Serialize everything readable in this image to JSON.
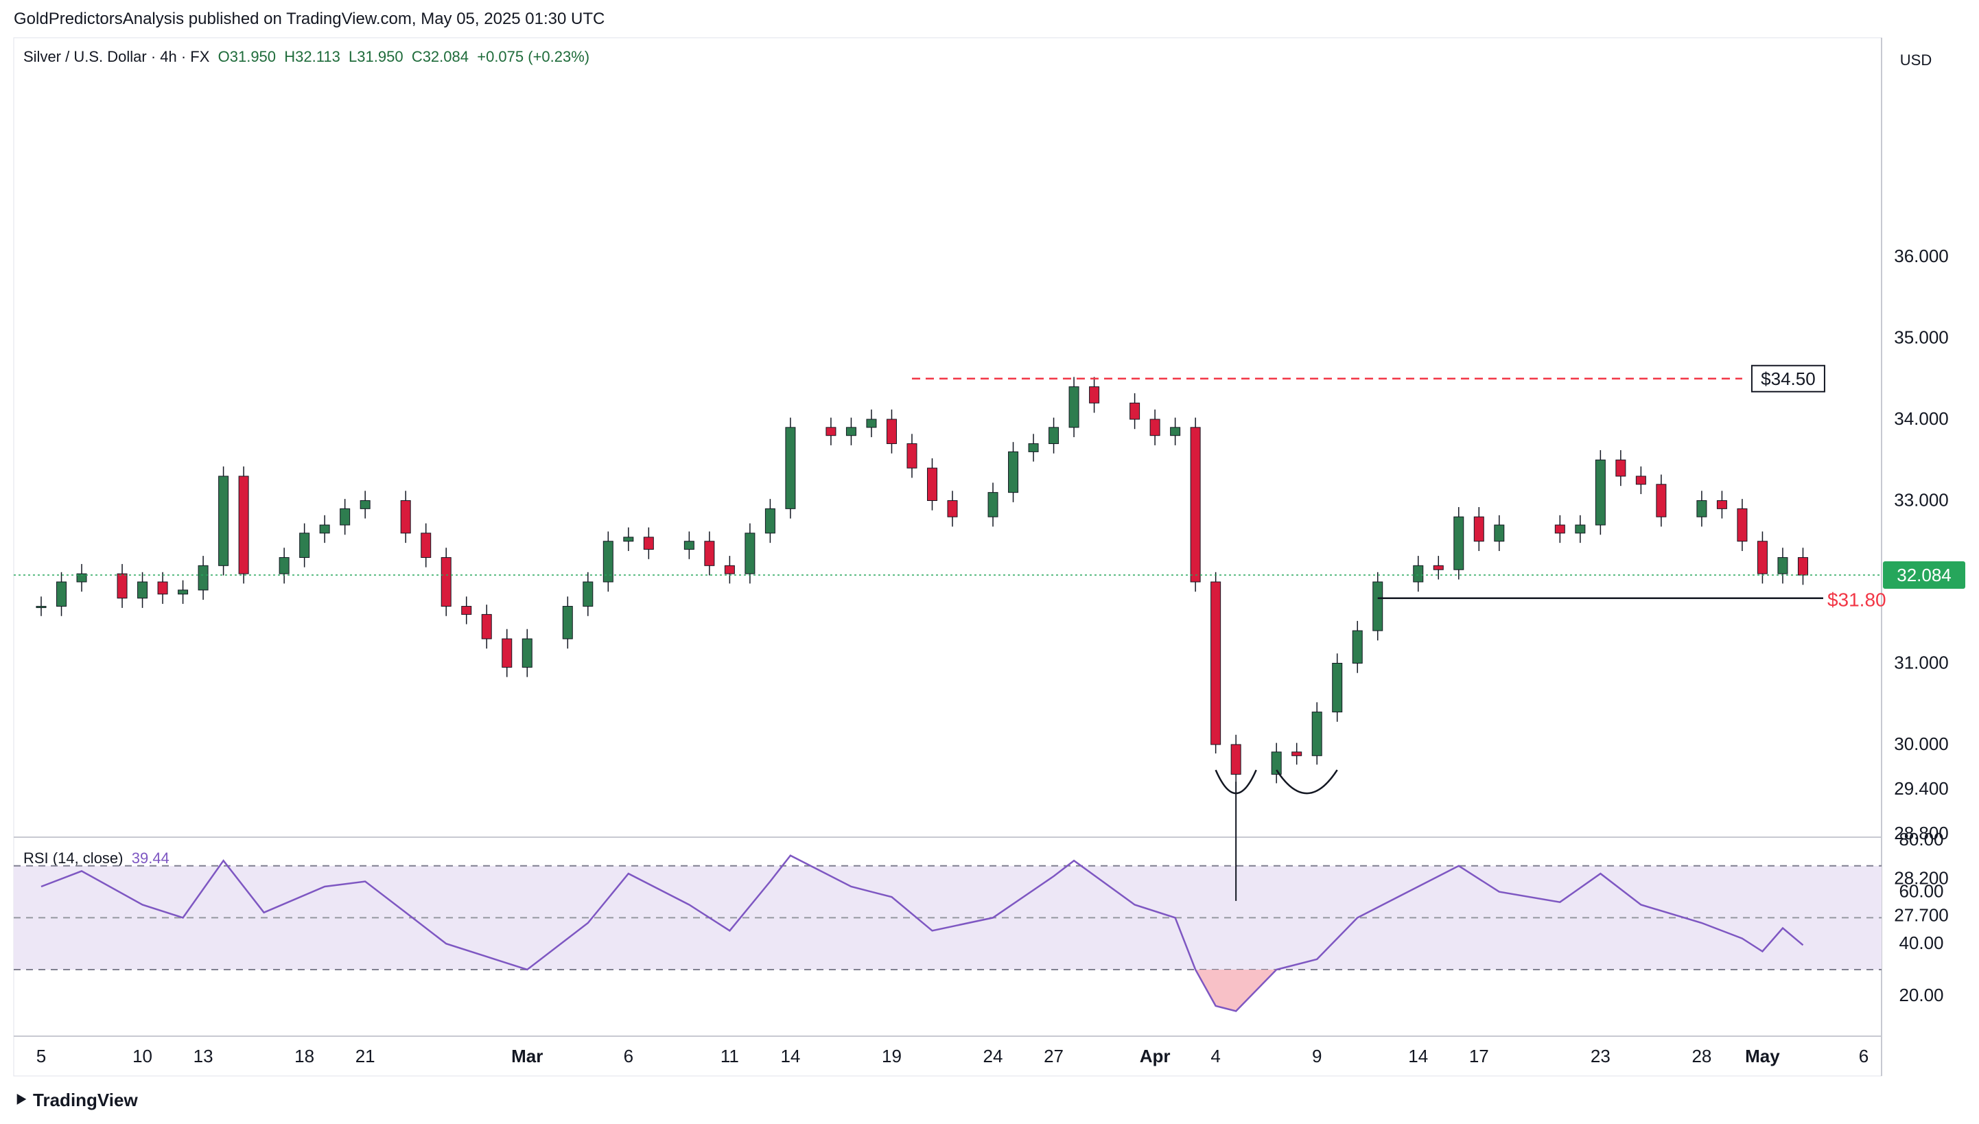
{
  "header": {
    "published_line": "GoldPredictorsAnalysis published on TradingView.com, May 05, 2025 01:30 UTC"
  },
  "legend": {
    "symbol": "Silver / U.S. Dollar · 4h · FX",
    "open": "O31.950",
    "high": "H32.113",
    "low": "L31.950",
    "close": "C32.084",
    "change": "+0.075 (+0.23%)"
  },
  "rsi_legend": {
    "name": "RSI (14, close)",
    "value": "39.44"
  },
  "footer": {
    "brand": "TradingView"
  },
  "colors": {
    "up": "#2e7d4f",
    "down": "#d81b3c",
    "rsi_line": "#7e57c2",
    "rsi_band": "#ede7f6",
    "resistance": "#f23645",
    "current_price": "#26a65b"
  },
  "chart_data": {
    "type": "candlestick",
    "symbol": "Silver / U.S. Dollar",
    "timeframe": "4h",
    "currency_label": "USD",
    "y_axis_ticks": [
      "36.000",
      "35.000",
      "34.000",
      "33.000",
      "31.000",
      "30.000",
      "29.400",
      "28.800",
      "28.200",
      "27.700"
    ],
    "x_axis_ticks": [
      "5",
      "10",
      "13",
      "18",
      "21",
      "Mar",
      "6",
      "11",
      "14",
      "19",
      "24",
      "27",
      "Apr",
      "4",
      "9",
      "14",
      "17",
      "23",
      "28",
      "May",
      "6"
    ],
    "current_price": "32.084",
    "annotations": [
      {
        "label": "$34.50",
        "value": 34.5,
        "style": "dashed red resistance line"
      },
      {
        "label": "$31.80",
        "value": 31.8,
        "style": "solid black support line"
      },
      {
        "label": "double bottom arcs",
        "value": 29.4
      }
    ],
    "close_path": [
      [
        "Feb 5",
        31.7
      ],
      [
        "Feb 6",
        32.0
      ],
      [
        "Feb 7",
        32.1
      ],
      [
        "Feb 9",
        31.8
      ],
      [
        "Feb 10",
        32.0
      ],
      [
        "Feb 11",
        31.85
      ],
      [
        "Feb 12",
        31.9
      ],
      [
        "Feb 13",
        32.2
      ],
      [
        "Feb 14",
        33.3
      ],
      [
        "Feb 15",
        32.1
      ],
      [
        "Feb 17",
        32.3
      ],
      [
        "Feb 18",
        32.6
      ],
      [
        "Feb 19",
        32.7
      ],
      [
        "Feb 20",
        32.9
      ],
      [
        "Feb 21",
        33.0
      ],
      [
        "Feb 23",
        32.6
      ],
      [
        "Feb 24",
        32.3
      ],
      [
        "Feb 25",
        31.7
      ],
      [
        "Feb 26",
        31.6
      ],
      [
        "Feb 27",
        31.3
      ],
      [
        "Feb 28",
        30.95
      ],
      [
        "Mar 1",
        31.3
      ],
      [
        "Mar 3",
        31.7
      ],
      [
        "Mar 4",
        32.0
      ],
      [
        "Mar 5",
        32.5
      ],
      [
        "Mar 6",
        32.55
      ],
      [
        "Mar 7",
        32.4
      ],
      [
        "Mar 9",
        32.5
      ],
      [
        "Mar 10",
        32.2
      ],
      [
        "Mar 11",
        32.1
      ],
      [
        "Mar 12",
        32.6
      ],
      [
        "Mar 13",
        32.9
      ],
      [
        "Mar 14",
        33.9
      ],
      [
        "Mar 16",
        33.8
      ],
      [
        "Mar 17",
        33.9
      ],
      [
        "Mar 18",
        34.0
      ],
      [
        "Mar 19",
        33.7
      ],
      [
        "Mar 20",
        33.4
      ],
      [
        "Mar 21",
        33.0
      ],
      [
        "Mar 22",
        32.8
      ],
      [
        "Mar 24",
        33.1
      ],
      [
        "Mar 25",
        33.6
      ],
      [
        "Mar 26",
        33.7
      ],
      [
        "Mar 27",
        33.9
      ],
      [
        "Mar 28",
        34.4
      ],
      [
        "Mar 29",
        34.2
      ],
      [
        "Mar 31",
        34.0
      ],
      [
        "Apr 1",
        33.8
      ],
      [
        "Apr 2",
        33.9
      ],
      [
        "Apr 3",
        32.0
      ],
      [
        "Apr 4",
        30.0
      ],
      [
        "Apr 5",
        29.6
      ],
      [
        "Apr 7",
        29.9
      ],
      [
        "Apr 8",
        29.85
      ],
      [
        "Apr 9",
        30.4
      ],
      [
        "Apr 10",
        31.0
      ],
      [
        "Apr 11",
        31.4
      ],
      [
        "Apr 12",
        32.0
      ],
      [
        "Apr 14",
        32.2
      ],
      [
        "Apr 15",
        32.15
      ],
      [
        "Apr 16",
        32.8
      ],
      [
        "Apr 17",
        32.5
      ],
      [
        "Apr 18",
        32.7
      ],
      [
        "Apr 21",
        32.6
      ],
      [
        "Apr 22",
        32.7
      ],
      [
        "Apr 23",
        33.5
      ],
      [
        "Apr 24",
        33.3
      ],
      [
        "Apr 25",
        33.2
      ],
      [
        "Apr 26",
        32.8
      ],
      [
        "Apr 28",
        33.0
      ],
      [
        "Apr 29",
        32.9
      ],
      [
        "Apr 30",
        32.5
      ],
      [
        "May 1",
        32.1
      ],
      [
        "May 2",
        32.3
      ],
      [
        "May 3",
        32.084
      ]
    ],
    "rsi": {
      "period": 14,
      "y_ticks": [
        "80.00",
        "60.00",
        "40.00",
        "20.00"
      ],
      "upper_band": 70,
      "mid": 50,
      "lower_band": 30,
      "path": [
        [
          "Feb 5",
          62
        ],
        [
          "Feb 7",
          68
        ],
        [
          "Feb 10",
          55
        ],
        [
          "Feb 12",
          50
        ],
        [
          "Feb 14",
          72
        ],
        [
          "Feb 16",
          52
        ],
        [
          "Feb 19",
          62
        ],
        [
          "Feb 21",
          64
        ],
        [
          "Feb 23",
          52
        ],
        [
          "Feb 25",
          40
        ],
        [
          "Feb 27",
          35
        ],
        [
          "Mar 1",
          30
        ],
        [
          "Mar 4",
          48
        ],
        [
          "Mar 6",
          67
        ],
        [
          "Mar 9",
          55
        ],
        [
          "Mar 11",
          45
        ],
        [
          "Mar 13",
          64
        ],
        [
          "Mar 14",
          74
        ],
        [
          "Mar 17",
          62
        ],
        [
          "Mar 19",
          58
        ],
        [
          "Mar 21",
          45
        ],
        [
          "Mar 24",
          50
        ],
        [
          "Mar 27",
          66
        ],
        [
          "Mar 28",
          72
        ],
        [
          "Mar 31",
          55
        ],
        [
          "Apr 2",
          50
        ],
        [
          "Apr 3",
          30
        ],
        [
          "Apr 4",
          16
        ],
        [
          "Apr 5",
          14
        ],
        [
          "Apr 7",
          30
        ],
        [
          "Apr 9",
          34
        ],
        [
          "Apr 11",
          50
        ],
        [
          "Apr 14",
          62
        ],
        [
          "Apr 16",
          70
        ],
        [
          "Apr 18",
          60
        ],
        [
          "Apr 21",
          56
        ],
        [
          "Apr 23",
          67
        ],
        [
          "Apr 25",
          55
        ],
        [
          "Apr 28",
          48
        ],
        [
          "Apr 30",
          42
        ],
        [
          "May 1",
          37
        ],
        [
          "May 2",
          46
        ],
        [
          "May 3",
          39.44
        ]
      ]
    }
  }
}
